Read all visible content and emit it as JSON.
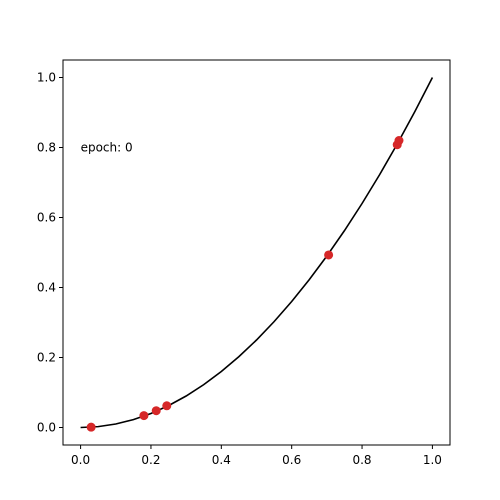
{
  "chart_data": {
    "type": "scatter",
    "title": "",
    "xlabel": "",
    "ylabel": "",
    "xlim": [
      -0.05,
      1.05
    ],
    "ylim": [
      -0.05,
      1.05
    ],
    "xticks": [
      0.0,
      0.2,
      0.4,
      0.6,
      0.8,
      1.0
    ],
    "yticks": [
      0.0,
      0.2,
      0.4,
      0.6,
      0.8,
      1.0
    ],
    "xtick_labels": [
      "0.0",
      "0.2",
      "0.4",
      "0.6",
      "0.8",
      "1.0"
    ],
    "ytick_labels": [
      "0.0",
      "0.2",
      "0.4",
      "0.6",
      "0.8",
      "1.0"
    ],
    "grid": false,
    "annotation": "epoch: 0",
    "series": [
      {
        "type": "line",
        "color": "#000000",
        "x": [
          0.0,
          0.05,
          0.1,
          0.15,
          0.2,
          0.25,
          0.3,
          0.35,
          0.4,
          0.45,
          0.5,
          0.55,
          0.6,
          0.65,
          0.7,
          0.75,
          0.8,
          0.85,
          0.9,
          0.95,
          1.0
        ],
        "y": [
          0.0,
          0.0025,
          0.01,
          0.0225,
          0.04,
          0.0625,
          0.09,
          0.1225,
          0.16,
          0.2025,
          0.25,
          0.3025,
          0.36,
          0.4225,
          0.49,
          0.5625,
          0.64,
          0.7225,
          0.81,
          0.9025,
          1.0
        ]
      },
      {
        "type": "scatter",
        "color": "#d62728",
        "x": [
          0.03,
          0.18,
          0.215,
          0.245,
          0.705,
          0.9,
          0.905
        ],
        "y": [
          0.001,
          0.034,
          0.048,
          0.062,
          0.493,
          0.808,
          0.82
        ]
      }
    ]
  }
}
